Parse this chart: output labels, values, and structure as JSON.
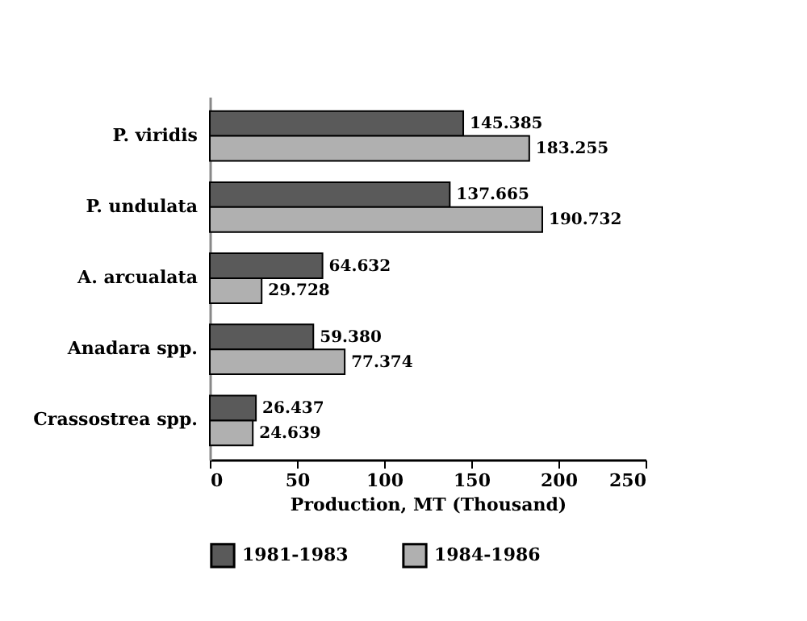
{
  "chart_data": {
    "type": "bar",
    "orientation": "horizontal",
    "categories": [
      "P. viridis",
      "P. undulata",
      "A. arcualata",
      "Anadara spp.",
      "Crassostrea spp."
    ],
    "series": [
      {
        "name": "1981-1983",
        "color": "#5a5a5a",
        "values": [
          145.385,
          137.665,
          64.632,
          59.38,
          26.437
        ],
        "value_labels": [
          "145.385",
          "137.665",
          "64.632",
          "59.380",
          "26.437"
        ]
      },
      {
        "name": "1984-1986",
        "color": "#b0b0b0",
        "values": [
          183.255,
          190.732,
          29.728,
          77.374,
          24.639
        ],
        "value_labels": [
          "183.255",
          "190.732",
          "29.728",
          "77.374",
          "24.639"
        ]
      }
    ],
    "xlabel": "Production, MT (Thousand)",
    "xlim": [
      0,
      250
    ],
    "xticks": [
      0,
      50,
      100,
      150,
      200,
      250
    ],
    "grid": false,
    "legend": "bottom"
  }
}
